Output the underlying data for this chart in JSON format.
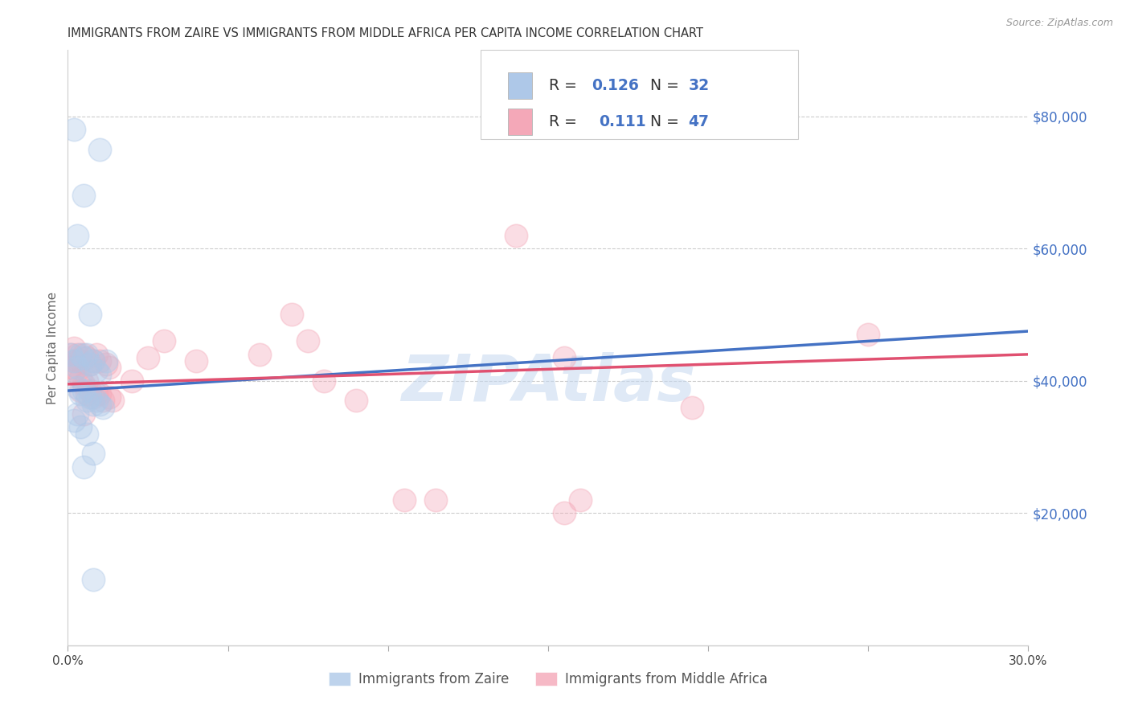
{
  "title": "IMMIGRANTS FROM ZAIRE VS IMMIGRANTS FROM MIDDLE AFRICA PER CAPITA INCOME CORRELATION CHART",
  "source": "Source: ZipAtlas.com",
  "ylabel": "Per Capita Income",
  "xlim": [
    0,
    0.3
  ],
  "ylim": [
    0,
    90000
  ],
  "yticks": [
    20000,
    40000,
    60000,
    80000
  ],
  "xticks": [
    0.0,
    0.05,
    0.1,
    0.15,
    0.2,
    0.25,
    0.3
  ],
  "blue_fill": "#aec8e8",
  "pink_fill": "#f4a8b8",
  "blue_line_color": "#4472c4",
  "pink_line_color": "#e05070",
  "blue_scatter_x": [
    0.002,
    0.005,
    0.01,
    0.003,
    0.007,
    0.001,
    0.002,
    0.003,
    0.004,
    0.005,
    0.006,
    0.007,
    0.008,
    0.009,
    0.01,
    0.012,
    0.003,
    0.004,
    0.005,
    0.006,
    0.007,
    0.008,
    0.009,
    0.01,
    0.011,
    0.002,
    0.003,
    0.004,
    0.006,
    0.008,
    0.005,
    0.008
  ],
  "blue_scatter_y": [
    78000,
    68000,
    75000,
    62000,
    50000,
    44000,
    43000,
    42000,
    44000,
    43500,
    44000,
    42500,
    43000,
    41500,
    41000,
    43000,
    39000,
    38000,
    38500,
    37000,
    37500,
    36500,
    37000,
    36500,
    36000,
    34000,
    35000,
    33000,
    32000,
    29000,
    27000,
    10000
  ],
  "pink_scatter_x": [
    0.001,
    0.001,
    0.002,
    0.002,
    0.002,
    0.003,
    0.003,
    0.003,
    0.004,
    0.004,
    0.004,
    0.005,
    0.005,
    0.005,
    0.006,
    0.006,
    0.006,
    0.007,
    0.007,
    0.008,
    0.008,
    0.009,
    0.009,
    0.01,
    0.01,
    0.011,
    0.012,
    0.013,
    0.013,
    0.014,
    0.02,
    0.025,
    0.03,
    0.04,
    0.06,
    0.07,
    0.075,
    0.08,
    0.09,
    0.105,
    0.115,
    0.14,
    0.155,
    0.16,
    0.195,
    0.25,
    0.155
  ],
  "pink_scatter_y": [
    44000,
    42000,
    45000,
    43000,
    41500,
    44000,
    43000,
    41500,
    43000,
    40500,
    38500,
    44000,
    39500,
    35000,
    43500,
    40000,
    38000,
    42500,
    38500,
    43000,
    37500,
    44000,
    38000,
    43000,
    38000,
    37000,
    42500,
    37500,
    42000,
    37000,
    40000,
    43500,
    46000,
    43000,
    44000,
    50000,
    46000,
    40000,
    37000,
    22000,
    22000,
    62000,
    43500,
    22000,
    36000,
    47000,
    20000
  ],
  "blue_trend_x": [
    0.0,
    0.3
  ],
  "blue_trend_y": [
    38500,
    47500
  ],
  "pink_trend_x": [
    0.0,
    0.3
  ],
  "pink_trend_y": [
    39500,
    44000
  ],
  "background_color": "#ffffff",
  "grid_color": "#cccccc",
  "watermark_text": "ZIPAtlas",
  "legend_blue_R": "0.126",
  "legend_blue_N": "32",
  "legend_pink_R": "0.111",
  "legend_pink_N": "47",
  "legend_label_blue": "Immigrants from Zaire",
  "legend_label_pink": "Immigrants from Middle Africa",
  "marker_size": 420,
  "marker_alpha": 0.38
}
